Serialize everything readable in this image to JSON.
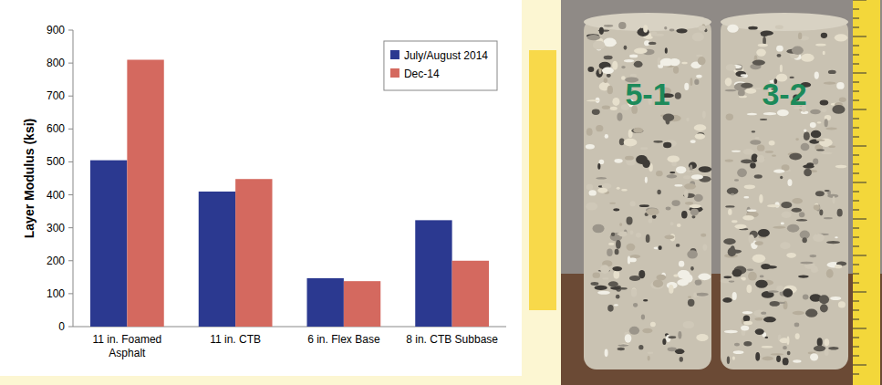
{
  "chart_data": {
    "type": "bar",
    "y_label": "Layer Modulus (ksi)",
    "categories": [
      "11 in. Foamed Asphalt",
      "11 in. CTB",
      "6 in. Flex Base",
      "8 in. CTB Subbase"
    ],
    "series": [
      {
        "name": "July/August 2014",
        "color": "#2b3990",
        "values": [
          505,
          410,
          147,
          323
        ]
      },
      {
        "name": "Dec-14",
        "color": "#d4695f",
        "values": [
          810,
          448,
          138,
          200
        ]
      }
    ],
    "ylim": [
      0,
      900
    ],
    "yticks": [
      0,
      100,
      200,
      300,
      400,
      500,
      600,
      700,
      800,
      900
    ],
    "grid": false,
    "legend": "upper right"
  },
  "photo": {
    "labels": [
      "5-1",
      "3-2"
    ]
  }
}
